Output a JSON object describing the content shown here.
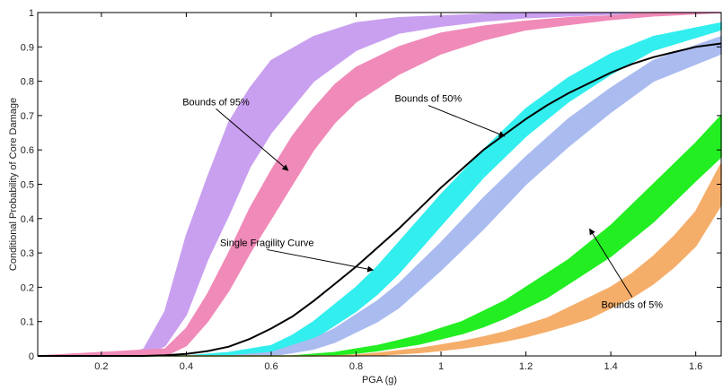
{
  "chart_data": {
    "type": "area",
    "title": "",
    "xlabel": "PGA (g)",
    "ylabel": "Conditional Probability of Core Damage",
    "xlim": [
      0.05,
      1.66
    ],
    "ylim": [
      0,
      1
    ],
    "grid": false,
    "x_ticks": [
      0.2,
      0.4,
      0.6,
      0.8,
      1,
      1.2,
      1.4,
      1.6
    ],
    "x_tick_labels": [
      "0.2",
      "0.4",
      "0.6",
      "0.8",
      "1",
      "1.2",
      "1.4",
      "1.6"
    ],
    "y_ticks": [
      0,
      0.1,
      0.2,
      0.3,
      0.4,
      0.5,
      0.6,
      0.7,
      0.8,
      0.9,
      1
    ],
    "y_tick_labels": [
      "0",
      "0.1",
      "0.2",
      "0.3",
      "0.4",
      "0.5",
      "0.6",
      "0.7",
      "0.8",
      "0.9",
      "1"
    ],
    "bands": [
      {
        "color": "#c9a0f0",
        "x": [
          0.05,
          0.25,
          0.3,
          0.35,
          0.4,
          0.45,
          0.5,
          0.55,
          0.6,
          0.7,
          0.8,
          0.9,
          1.0,
          1.1,
          1.2,
          1.3,
          1.4,
          1.5,
          1.66
        ],
        "upper": [
          0,
          0,
          0.02,
          0.13,
          0.35,
          0.52,
          0.68,
          0.78,
          0.86,
          0.93,
          0.97,
          0.985,
          0.99,
          0.995,
          1,
          1,
          1,
          1,
          1
        ],
        "lower": [
          0,
          0,
          0,
          0.03,
          0.12,
          0.28,
          0.41,
          0.55,
          0.65,
          0.8,
          0.89,
          0.94,
          0.96,
          0.975,
          0.985,
          0.99,
          0.995,
          1,
          1
        ]
      },
      {
        "color": "#f08ab8",
        "x": [
          0.05,
          0.35,
          0.4,
          0.45,
          0.5,
          0.55,
          0.6,
          0.65,
          0.7,
          0.75,
          0.8,
          0.9,
          1.0,
          1.1,
          1.2,
          1.3,
          1.4,
          1.5,
          1.66
        ],
        "upper": [
          0,
          0.02,
          0.08,
          0.18,
          0.3,
          0.43,
          0.54,
          0.64,
          0.72,
          0.79,
          0.84,
          0.9,
          0.94,
          0.96,
          0.975,
          0.985,
          0.99,
          1,
          1
        ],
        "lower": [
          0,
          0,
          0.03,
          0.1,
          0.19,
          0.3,
          0.4,
          0.5,
          0.6,
          0.68,
          0.74,
          0.82,
          0.88,
          0.92,
          0.95,
          0.965,
          0.98,
          0.99,
          1
        ]
      },
      {
        "color": "#33eeee",
        "x": [
          0.05,
          0.4,
          0.5,
          0.6,
          0.65,
          0.7,
          0.75,
          0.8,
          0.85,
          0.9,
          1.0,
          1.1,
          1.2,
          1.3,
          1.4,
          1.5,
          1.66
        ],
        "upper": [
          0,
          0,
          0.01,
          0.03,
          0.06,
          0.1,
          0.15,
          0.2,
          0.26,
          0.33,
          0.47,
          0.6,
          0.72,
          0.81,
          0.88,
          0.93,
          0.97
        ],
        "lower": [
          0,
          0,
          0,
          0.01,
          0.03,
          0.05,
          0.09,
          0.13,
          0.18,
          0.24,
          0.38,
          0.52,
          0.64,
          0.74,
          0.82,
          0.89,
          0.95
        ]
      },
      {
        "color": "#aabbf0",
        "x": [
          0.05,
          0.5,
          0.6,
          0.65,
          0.7,
          0.75,
          0.8,
          0.85,
          0.9,
          1.0,
          1.1,
          1.2,
          1.3,
          1.4,
          1.5,
          1.66
        ],
        "upper": [
          0,
          0,
          0.01,
          0.03,
          0.05,
          0.08,
          0.12,
          0.16,
          0.21,
          0.33,
          0.46,
          0.58,
          0.69,
          0.78,
          0.86,
          0.93
        ],
        "lower": [
          0,
          0,
          0,
          0.01,
          0.02,
          0.04,
          0.07,
          0.1,
          0.14,
          0.25,
          0.37,
          0.5,
          0.61,
          0.71,
          0.8,
          0.88
        ]
      },
      {
        "color": "#22ee22",
        "x": [
          0.05,
          0.65,
          0.7,
          0.75,
          0.8,
          0.85,
          0.9,
          0.95,
          1.0,
          1.05,
          1.1,
          1.15,
          1.2,
          1.25,
          1.3,
          1.35,
          1.4,
          1.45,
          1.5,
          1.55,
          1.6,
          1.66
        ],
        "upper": [
          0,
          0,
          0.005,
          0.01,
          0.02,
          0.03,
          0.045,
          0.06,
          0.08,
          0.1,
          0.13,
          0.16,
          0.2,
          0.24,
          0.28,
          0.33,
          0.38,
          0.44,
          0.5,
          0.56,
          0.62,
          0.7
        ],
        "lower": [
          0,
          0,
          0,
          0.003,
          0.008,
          0.015,
          0.025,
          0.035,
          0.05,
          0.065,
          0.085,
          0.11,
          0.14,
          0.17,
          0.21,
          0.25,
          0.29,
          0.34,
          0.39,
          0.45,
          0.51,
          0.58
        ]
      },
      {
        "color": "#f5ae6a",
        "x": [
          0.05,
          0.75,
          0.8,
          0.85,
          0.9,
          0.95,
          1.0,
          1.05,
          1.1,
          1.15,
          1.2,
          1.25,
          1.3,
          1.35,
          1.4,
          1.45,
          1.5,
          1.55,
          1.6,
          1.66
        ],
        "upper": [
          0,
          0,
          0.003,
          0.008,
          0.015,
          0.022,
          0.032,
          0.042,
          0.055,
          0.07,
          0.09,
          0.11,
          0.14,
          0.17,
          0.2,
          0.24,
          0.29,
          0.35,
          0.42,
          0.56
        ],
        "lower": [
          0,
          0,
          0,
          0.002,
          0.006,
          0.01,
          0.016,
          0.023,
          0.032,
          0.043,
          0.056,
          0.072,
          0.09,
          0.11,
          0.14,
          0.17,
          0.21,
          0.26,
          0.32,
          0.44
        ]
      }
    ],
    "series": [
      {
        "color": "#000000",
        "x": [
          0.05,
          0.3,
          0.35,
          0.4,
          0.45,
          0.5,
          0.55,
          0.6,
          0.65,
          0.7,
          0.75,
          0.8,
          0.85,
          0.9,
          0.95,
          1.0,
          1.05,
          1.1,
          1.15,
          1.2,
          1.25,
          1.3,
          1.35,
          1.4,
          1.45,
          1.5,
          1.55,
          1.6,
          1.66
        ],
        "values": [
          0,
          0,
          0.002,
          0.006,
          0.014,
          0.027,
          0.05,
          0.08,
          0.115,
          0.16,
          0.21,
          0.26,
          0.315,
          0.37,
          0.43,
          0.49,
          0.545,
          0.6,
          0.645,
          0.69,
          0.73,
          0.765,
          0.795,
          0.825,
          0.85,
          0.87,
          0.885,
          0.9,
          0.91
        ]
      }
    ],
    "annotations": [
      {
        "text": "Bounds of 95%",
        "text_at": [
          0.47,
          0.73
        ],
        "arrow_to": [
          0.64,
          0.54
        ]
      },
      {
        "text": "Bounds of 50%",
        "text_at": [
          0.97,
          0.74
        ],
        "arrow_to": [
          1.15,
          0.64
        ]
      },
      {
        "text": "Single Fragility Curve",
        "text_at": [
          0.59,
          0.32
        ],
        "arrow_to": [
          0.84,
          0.25
        ]
      },
      {
        "text": "Bounds of 5%",
        "text_at": [
          1.45,
          0.14
        ],
        "arrow_to": [
          1.35,
          0.37
        ]
      }
    ]
  }
}
